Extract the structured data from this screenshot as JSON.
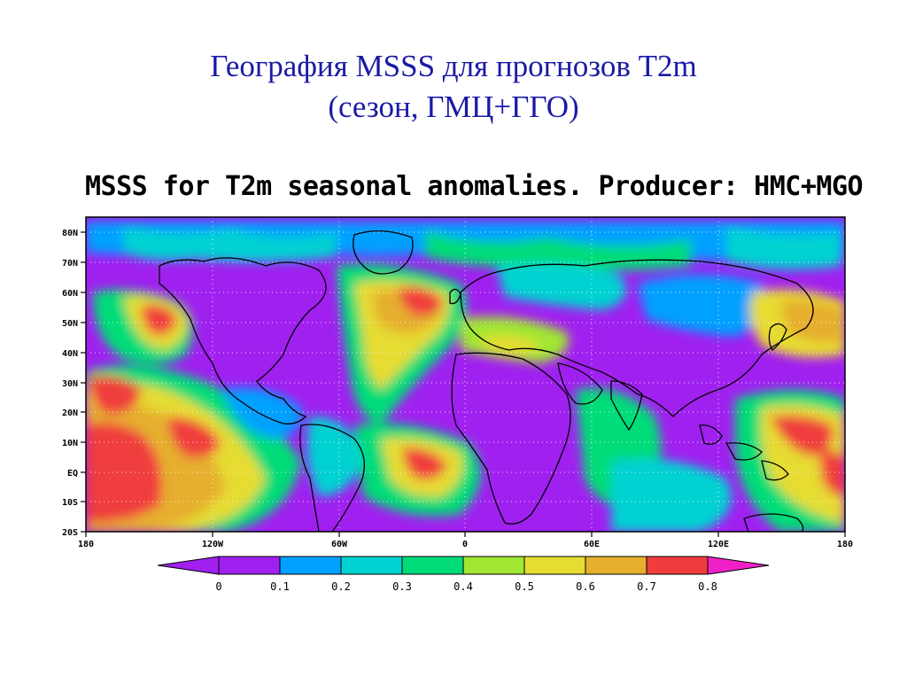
{
  "slide": {
    "title_line1": "География MSSS для прогнозов T2m",
    "title_line2": "(сезон, ГМЦ+ГГО)"
  },
  "map": {
    "title": "MSSS for T2m seasonal anomalies. Producer: HMC+MGO",
    "lat_labels": [
      "80N",
      "70N",
      "60N",
      "50N",
      "40N",
      "30N",
      "20N",
      "10N",
      "EQ",
      "10S",
      "20S"
    ],
    "lon_labels": [
      "180",
      "120W",
      "60W",
      "0",
      "60E",
      "120E",
      "180"
    ]
  },
  "colorbar": {
    "levels": [
      "0",
      "0.1",
      "0.2",
      "0.3",
      "0.4",
      "0.5",
      "0.6",
      "0.7",
      "0.8"
    ],
    "colors": {
      "below": "#a020f0",
      "c0_01": "#a020f0",
      "c01_02": "#00a0ff",
      "c02_03": "#00d2d2",
      "c03_04": "#00dc78",
      "c04_05": "#a0e632",
      "c05_06": "#e6dc32",
      "c06_07": "#e6af2d",
      "c07_08": "#f03c3c",
      "above": "#f020c8"
    }
  }
}
